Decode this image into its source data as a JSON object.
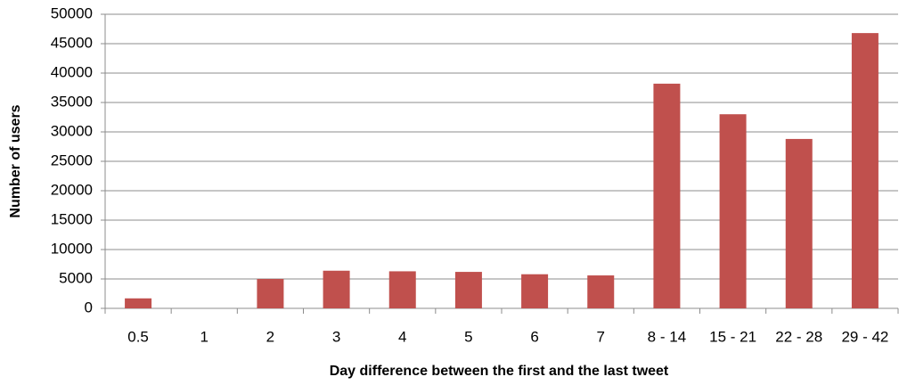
{
  "chart_data": {
    "type": "bar",
    "x_label": "Day difference between the first and the last tweet",
    "y_label": "Number of users",
    "categories": [
      "0.5",
      "1",
      "2",
      "3",
      "4",
      "5",
      "6",
      "7",
      "8 - 14",
      "15 - 21",
      "22 - 28",
      "29 - 42"
    ],
    "values": [
      1700,
      0,
      5000,
      6400,
      6300,
      6200,
      5800,
      5600,
      38200,
      33000,
      28800,
      46800
    ],
    "color": "#c0504d",
    "ylim": [
      0,
      50000
    ],
    "yticks": [
      0,
      5000,
      10000,
      15000,
      20000,
      25000,
      30000,
      35000,
      40000,
      45000,
      50000
    ],
    "grid": true
  }
}
